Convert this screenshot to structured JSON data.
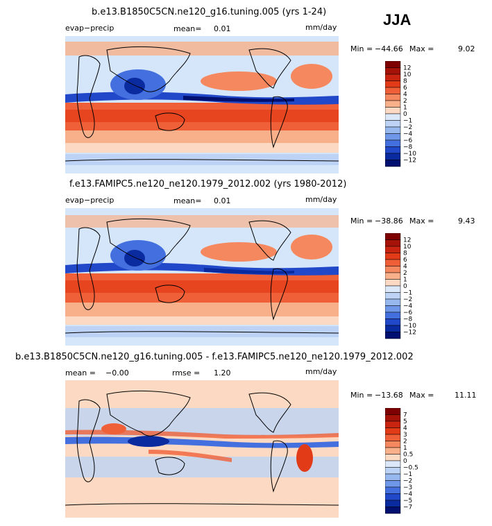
{
  "season": "JJA",
  "panels": [
    {
      "title": "b.e13.B1850C5CN.ne120_g16.tuning.005 (yrs 1-24)",
      "left_label": "evap−precip",
      "stat1_label": "mean=",
      "stat1_value": "0.01",
      "stat2_label": "",
      "stat2_value": "",
      "units": "mm/day",
      "min_label": "Min =",
      "min_value": "−44.66",
      "max_label": "Max =",
      "max_value": "9.02",
      "colorbar": {
        "labels": [
          "12",
          "10",
          "8",
          "6",
          "4",
          "2",
          "1",
          "0",
          "−1",
          "−2",
          "−4",
          "−6",
          "−8",
          "−10",
          "−12"
        ]
      }
    },
    {
      "title": "f.e13.FAMIPC5.ne120_ne120.1979_2012.002 (yrs 1980-2012)",
      "left_label": "evap−precip",
      "stat1_label": "mean=",
      "stat1_value": "0.01",
      "stat2_label": "",
      "stat2_value": "",
      "units": "mm/day",
      "min_label": "Min =",
      "min_value": "−38.86",
      "max_label": "Max =",
      "max_value": "9.43",
      "colorbar": {
        "labels": [
          "12",
          "10",
          "8",
          "6",
          "4",
          "2",
          "1",
          "0",
          "−1",
          "−2",
          "−4",
          "−6",
          "−8",
          "−10",
          "−12"
        ]
      }
    },
    {
      "title": "b.e13.B1850C5CN.ne120_g16.tuning.005 - f.e13.FAMIPC5.ne120_ne120.1979_2012.002",
      "left_label": "mean =",
      "stat1_label": "−0.00",
      "stat1_value": "",
      "stat2_label": "rmse =",
      "stat2_value": "1.20",
      "units": "mm/day",
      "min_label": "Min =",
      "min_value": "−13.68",
      "max_label": "Max =",
      "max_value": "11.11",
      "colorbar": {
        "labels": [
          "7",
          "5",
          "4",
          "3",
          "2",
          "1",
          "0.5",
          "0",
          "−0.5",
          "−1",
          "−2",
          "−3",
          "−4",
          "−5",
          "−7"
        ]
      }
    }
  ],
  "colors": {
    "scale": [
      "#7f0000",
      "#a51208",
      "#c9240f",
      "#e23b17",
      "#f06038",
      "#f5885e",
      "#f8b08a",
      "#fbd9c2",
      "#dbe8fa",
      "#bcd3f5",
      "#97b8ef",
      "#6f97e8",
      "#4470df",
      "#2048c8",
      "#0a2aa0",
      "#001070"
    ],
    "ocean_base": "#d6e6fa",
    "land_outline": "#000000"
  }
}
